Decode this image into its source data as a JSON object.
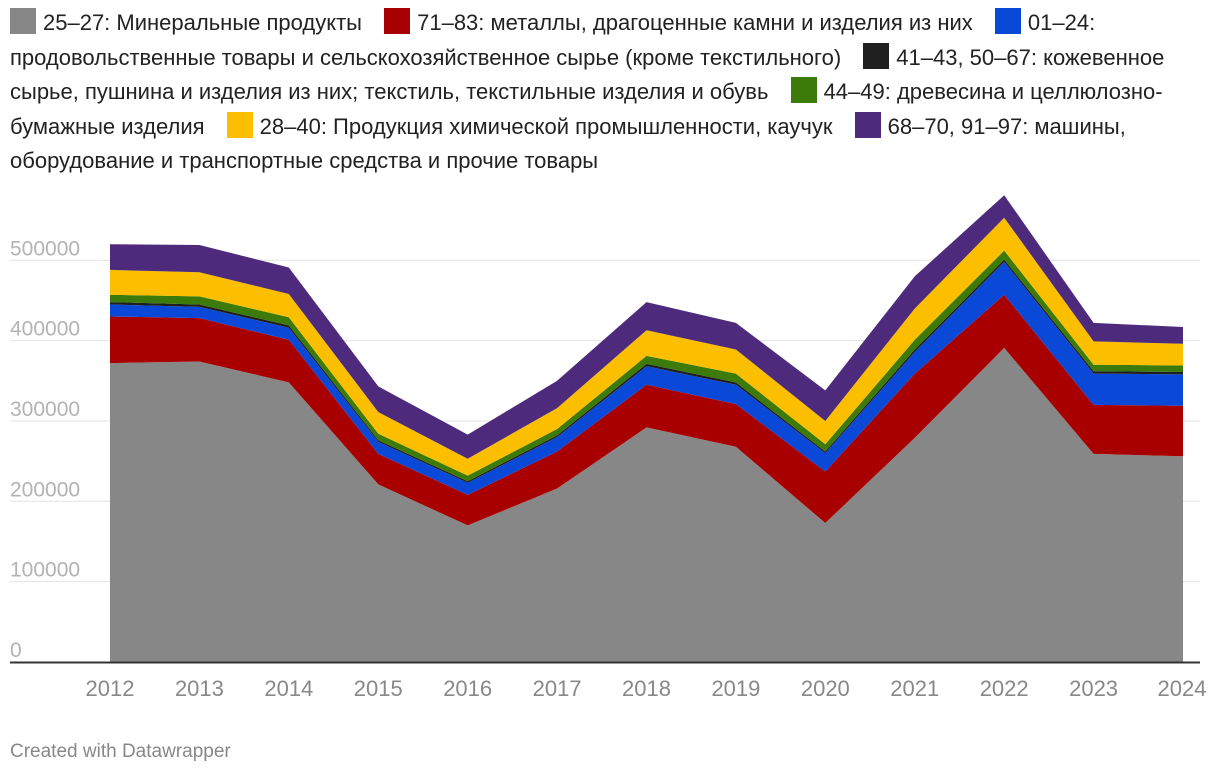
{
  "chart_data": {
    "type": "area",
    "stacked": true,
    "title": "",
    "xlabel": "",
    "ylabel": "",
    "ylim": [
      0,
      580000
    ],
    "yticks": [
      0,
      100000,
      200000,
      300000,
      400000,
      500000
    ],
    "ytick_labels": [
      "0",
      "100000",
      "200000",
      "300000",
      "400000",
      "500000"
    ],
    "x": [
      "2012",
      "2013",
      "2014",
      "2015",
      "2016",
      "2017",
      "2018",
      "2019",
      "2020",
      "2021",
      "2022",
      "2023",
      "2024"
    ],
    "series": [
      {
        "name": "25–27: Минеральные продукты",
        "color": "#878787",
        "values": [
          372000,
          374000,
          348000,
          221000,
          170000,
          216000,
          292000,
          268000,
          173000,
          279000,
          391000,
          259000,
          256000
        ]
      },
      {
        "name": "71–83: металлы, драгоценные камни и изделия из них",
        "color": "#a80000",
        "values": [
          58000,
          54000,
          53000,
          38000,
          38000,
          46000,
          53000,
          53000,
          64000,
          80000,
          66000,
          61000,
          63000
        ]
      },
      {
        "name": "01–24: продовольственные товары и сельскохозяйственное сырье (кроме текстильного)",
        "color": "#0a49d8",
        "values": [
          15000,
          14000,
          15000,
          15000,
          15000,
          18000,
          23000,
          24000,
          23000,
          27000,
          41000,
          39000,
          39000
        ]
      },
      {
        "name": "41–43, 50–67: кожевенное сырье, пушнина и изделия из них; текстиль, текстильные изделия и обувь",
        "color": "#1f1f1f",
        "values": [
          3000,
          3000,
          3000,
          2000,
          2000,
          2000,
          3000,
          3000,
          2000,
          3000,
          3000,
          3000,
          3000
        ]
      },
      {
        "name": "44–49: древесина и целлюлозно-бумажные изделия",
        "color": "#3c7a0a",
        "values": [
          9000,
          10000,
          10000,
          8000,
          7000,
          8000,
          10000,
          11000,
          9000,
          12000,
          11000,
          8000,
          8000
        ]
      },
      {
        "name": "28–40: Продукция химической промышленности, каучук",
        "color": "#fbbf00",
        "values": [
          31000,
          30000,
          29000,
          27000,
          21000,
          26000,
          32000,
          30000,
          29000,
          39000,
          41000,
          29000,
          27000
        ]
      },
      {
        "name": "68–70, 91–97: машины, оборудование и транспортные средства и прочие товары",
        "color": "#4e2a7c",
        "values": [
          32000,
          34000,
          33000,
          32000,
          30000,
          34000,
          35000,
          33000,
          38000,
          40000,
          28000,
          23000,
          21000
        ]
      }
    ]
  },
  "footer": {
    "credit": "Created with Datawrapper"
  }
}
